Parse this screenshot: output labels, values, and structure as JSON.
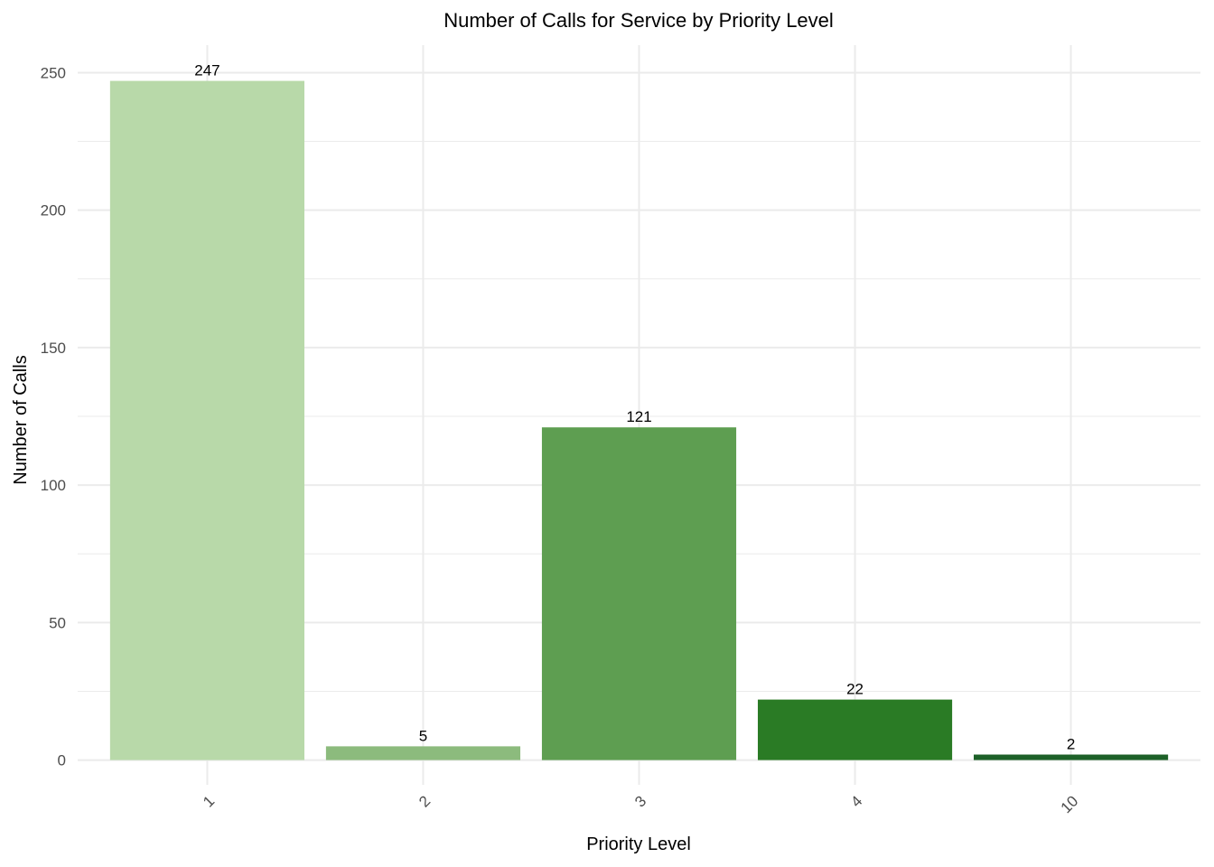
{
  "chart_data": {
    "type": "bar",
    "title": "Number of Calls for Service by Priority Level",
    "xlabel": "Priority Level",
    "ylabel": "Number of Calls",
    "categories": [
      "1",
      "2",
      "3",
      "4",
      "10"
    ],
    "values": [
      247,
      5,
      121,
      22,
      2
    ],
    "data_labels": [
      "247",
      "5",
      "121",
      "22",
      "2"
    ],
    "bar_colors": [
      "#b8d9a9",
      "#8cbb7d",
      "#5e9e51",
      "#2a7b25",
      "#1d6128"
    ],
    "ylim": [
      -9,
      260
    ],
    "yticks": [
      0,
      50,
      100,
      150,
      200,
      250
    ],
    "ytick_labels": [
      "0",
      "50",
      "100",
      "150",
      "200",
      "250"
    ],
    "y_minor_ticks": [
      25,
      75,
      125,
      175,
      225
    ],
    "grid": true,
    "legend": "none",
    "x_tick_rotation": "45 degrees"
  }
}
